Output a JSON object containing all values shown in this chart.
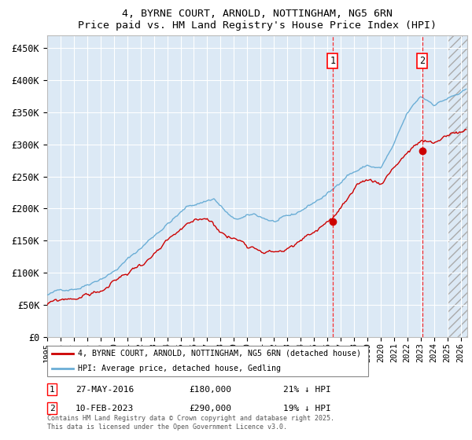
{
  "title_line1": "4, BYRNE COURT, ARNOLD, NOTTINGHAM, NG5 6RN",
  "title_line2": "Price paid vs. HM Land Registry's House Price Index (HPI)",
  "ylabel_ticks": [
    "£0",
    "£50K",
    "£100K",
    "£150K",
    "£200K",
    "£250K",
    "£300K",
    "£350K",
    "£400K",
    "£450K"
  ],
  "ytick_values": [
    0,
    50000,
    100000,
    150000,
    200000,
    250000,
    300000,
    350000,
    400000,
    450000
  ],
  "ylim": [
    0,
    470000
  ],
  "xlim_start": 1995.0,
  "xlim_end": 2026.5,
  "hpi_color": "#6baed6",
  "price_color": "#cc0000",
  "plot_bg": "#dce9f5",
  "grid_color": "#ffffff",
  "sale1_x": 2016.41,
  "sale1_y": 180000,
  "sale2_x": 2023.11,
  "sale2_y": 290000,
  "sale1_label": "27-MAY-2016",
  "sale1_price": "£180,000",
  "sale1_note": "21% ↓ HPI",
  "sale2_label": "10-FEB-2023",
  "sale2_price": "£290,000",
  "sale2_note": "19% ↓ HPI",
  "legend_label1": "4, BYRNE COURT, ARNOLD, NOTTINGHAM, NG5 6RN (detached house)",
  "legend_label2": "HPI: Average price, detached house, Gedling",
  "footer": "Contains HM Land Registry data © Crown copyright and database right 2025.\nThis data is licensed under the Open Government Licence v3.0.",
  "future_shade_start": 2025.0
}
